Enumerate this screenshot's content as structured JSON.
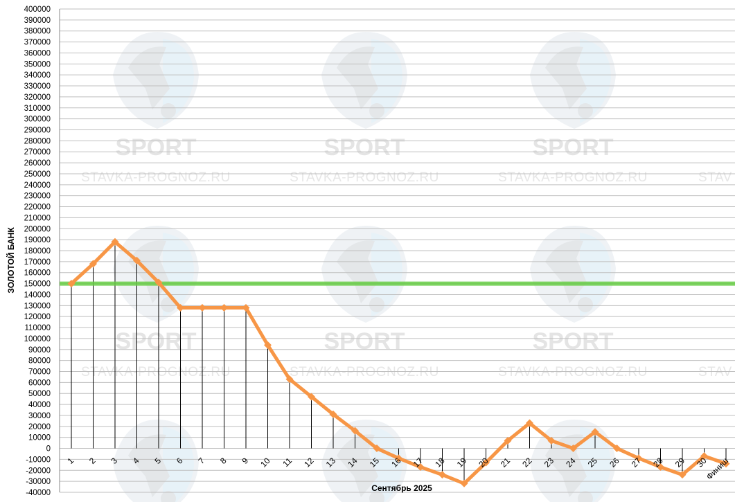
{
  "chart_data": {
    "type": "line",
    "title": "",
    "xlabel": "Сентябрь 2025",
    "ylabel": "ЗОЛОТОЙ БАНК",
    "ylim": [
      -40000,
      400000
    ],
    "ytick_step": 10000,
    "grid": true,
    "categories": [
      "1",
      "2",
      "3",
      "4",
      "5",
      "6",
      "7",
      "8",
      "9",
      "10",
      "11",
      "12",
      "13",
      "14",
      "15",
      "16",
      "17",
      "18",
      "19",
      "20",
      "21",
      "22",
      "23",
      "24",
      "25",
      "26",
      "27",
      "28",
      "29",
      "30",
      "Финиш"
    ],
    "series": [
      {
        "name": "",
        "color": "#f79646",
        "values": [
          150000,
          168000,
          188000,
          171000,
          151000,
          128000,
          128000,
          128000,
          128000,
          94000,
          63000,
          47000,
          31000,
          16000,
          0,
          -9000,
          -17000,
          -24000,
          -32000,
          -13000,
          7000,
          23000,
          7000,
          0,
          15000,
          0,
          -9000,
          -17000,
          -24000,
          -7000,
          -14000
        ]
      }
    ],
    "reference_line": {
      "value": 150000,
      "color": "#66cc44"
    }
  },
  "watermark": {
    "sport_text": "SPORT",
    "site_text": "STAVKA-PROGNOZ.RU",
    "site_text_cut": "STAV"
  }
}
